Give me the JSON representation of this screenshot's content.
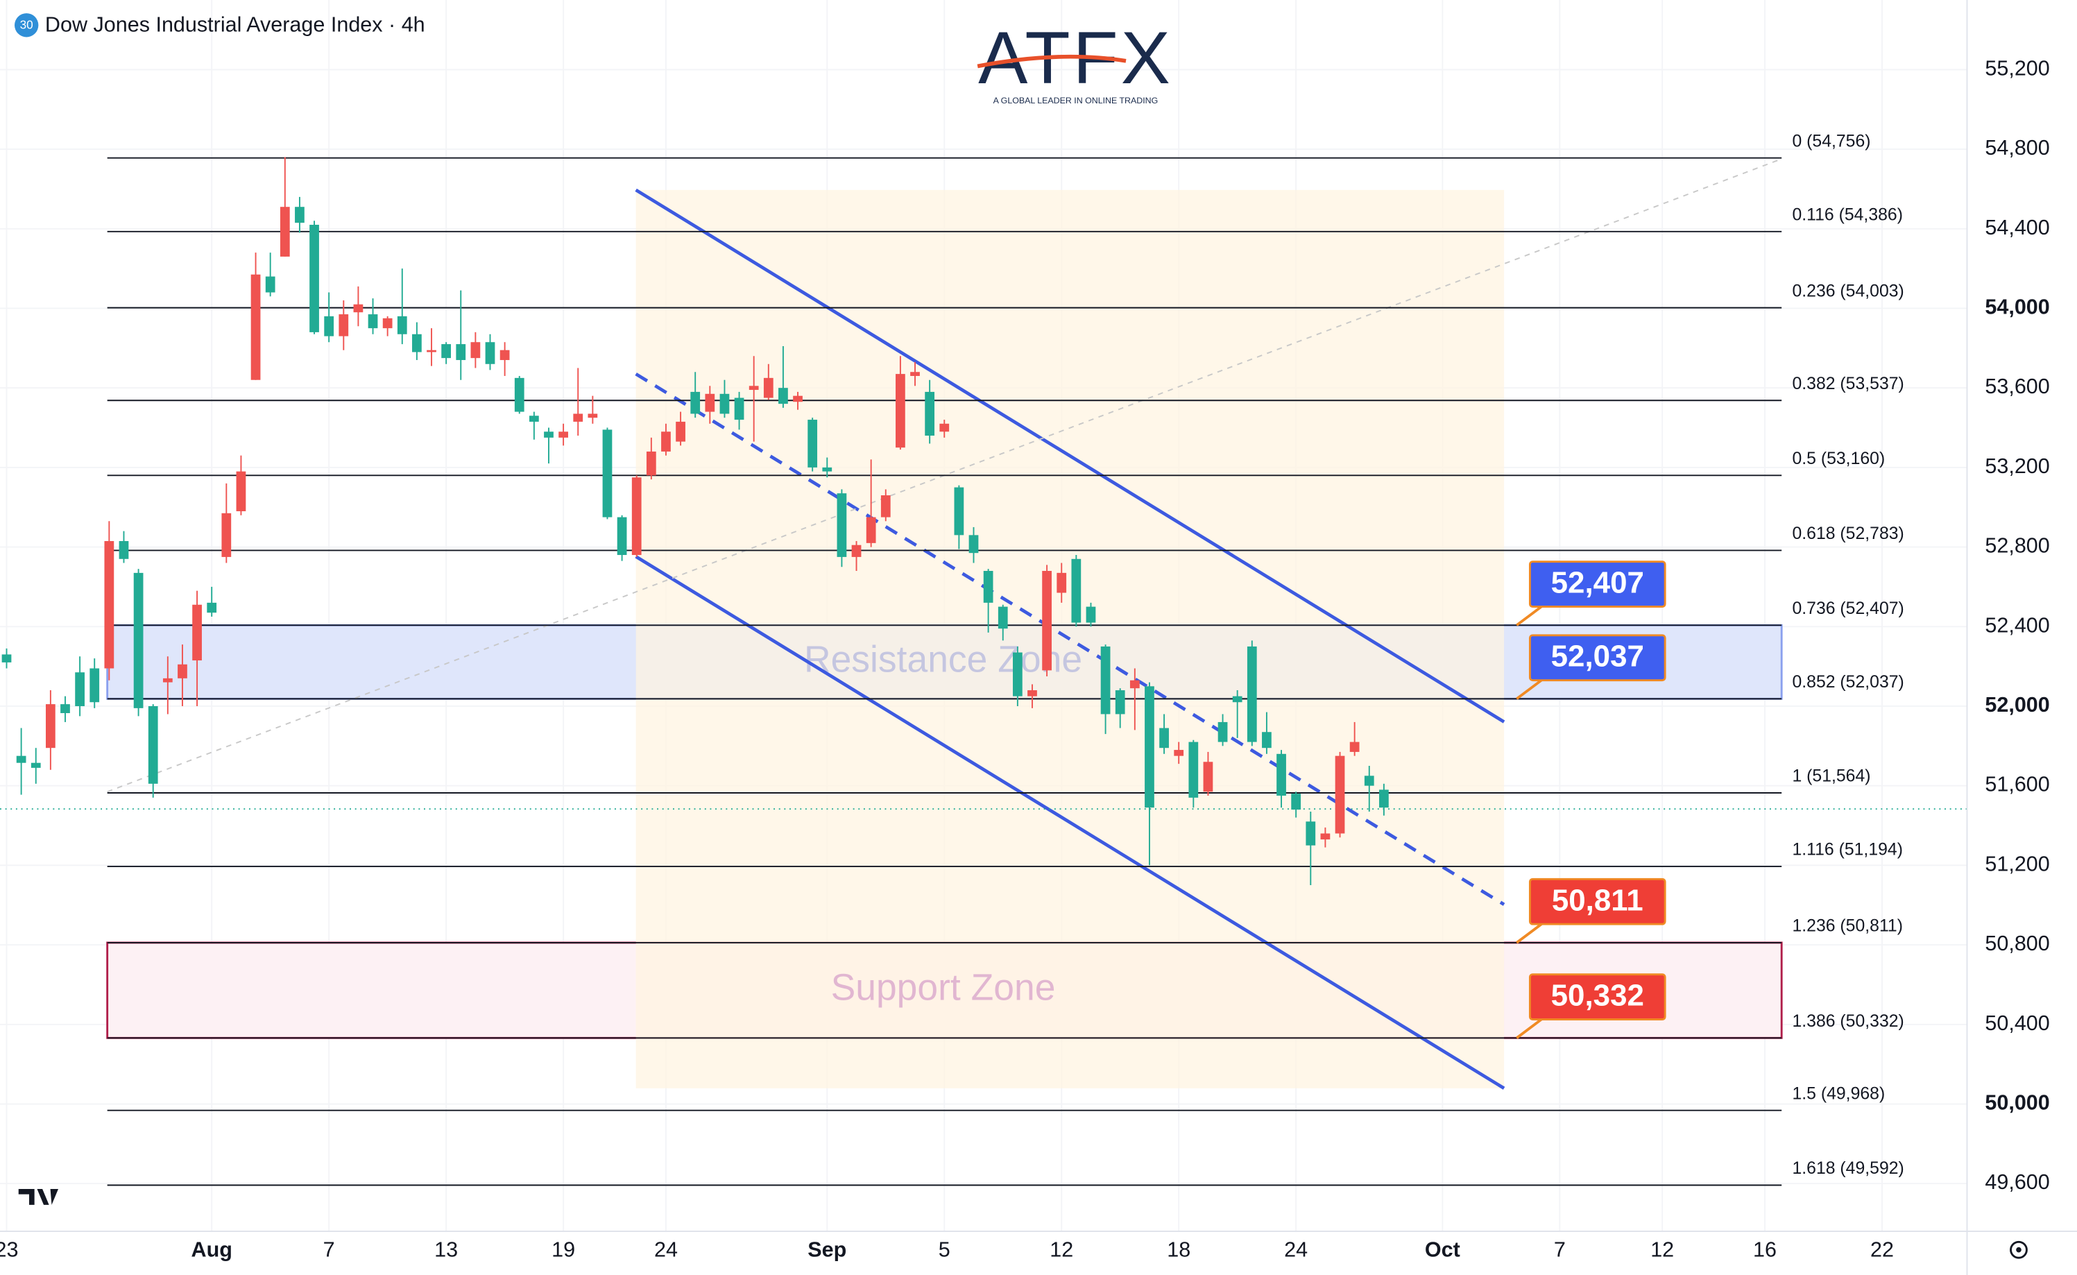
{
  "chart_data": {
    "type": "candlestick",
    "title": "Dow Jones Industrial Average Index · 4h",
    "symbol_badge": "30",
    "logo": "ATFX",
    "logo_tagline": "A GLOBAL LEADER IN ONLINE TRADING",
    "categories": [
      null,
      null,
      null,
      null,
      null,
      null,
      null,
      null,
      null,
      null,
      null,
      null,
      null,
      null,
      null,
      null,
      null,
      null,
      null,
      null,
      null,
      null,
      null,
      null,
      null,
      null,
      null,
      null,
      null,
      null,
      null,
      null,
      null,
      null,
      null,
      null,
      null,
      null,
      null,
      null,
      null,
      null,
      null,
      null,
      null,
      null,
      null,
      null,
      null,
      null,
      null,
      null,
      null,
      null,
      null,
      null,
      null,
      null,
      null,
      null,
      null,
      null,
      null,
      null,
      null,
      null,
      null,
      null,
      null,
      null,
      null,
      null,
      null,
      null,
      null,
      null,
      null,
      null,
      null,
      null,
      null,
      null,
      null,
      null,
      null,
      null,
      null,
      null,
      null,
      null,
      null,
      null,
      null,
      null,
      null
    ],
    "series": [
      {
        "up_color": "#ef5350",
        "down_color": "#22ab94",
        "open": [
          52260,
          51750,
          51715,
          51790,
          52010,
          52170,
          52190,
          52190,
          52830,
          52670,
          52000,
          52120,
          52140,
          52230,
          52520,
          52750,
          52980,
          53640,
          54160,
          54260,
          54510,
          54420,
          53960,
          53860,
          53980,
          53970,
          53900,
          53960,
          53870,
          53780,
          53820,
          53820,
          53750,
          53830,
          53740,
          53650,
          53460,
          53380,
          53350,
          53430,
          53450,
          53390,
          52950,
          52760,
          53160,
          53280,
          53330,
          53580,
          53480,
          53570,
          53550,
          53590,
          53550,
          53600,
          53530,
          53440,
          53200,
          53070,
          52750,
          52820,
          52950,
          53300,
          53660,
          53580,
          53380,
          53100,
          52860,
          52680,
          52500,
          52270,
          52050,
          52180,
          52570,
          52740,
          52500,
          52300,
          52080,
          52090,
          52100,
          51890,
          51750,
          51820,
          51570,
          51920,
          52050,
          52300,
          51870,
          51760,
          51560,
          51420,
          51330,
          51360,
          51770,
          51650,
          51580
        ],
        "high": [
          52290,
          51890,
          51790,
          52080,
          52050,
          52250,
          52240,
          52930,
          52880,
          52690,
          52010,
          52250,
          52310,
          52580,
          52600,
          53120,
          53260,
          54280,
          54280,
          54760,
          54560,
          54440,
          54080,
          54040,
          54110,
          54050,
          53960,
          54200,
          53930,
          53900,
          53830,
          54090,
          53880,
          53870,
          53830,
          53660,
          53480,
          53400,
          53420,
          53700,
          53560,
          53400,
          52960,
          53160,
          53350,
          53420,
          53480,
          53680,
          53610,
          53640,
          53580,
          53760,
          53720,
          53810,
          53580,
          53450,
          53250,
          53090,
          52830,
          53240,
          53090,
          53760,
          53730,
          53640,
          53440,
          53110,
          52900,
          52690,
          52510,
          52300,
          52110,
          52710,
          52720,
          52760,
          52520,
          52310,
          52090,
          52190,
          52120,
          51960,
          51820,
          51830,
          51770,
          51960,
          52080,
          52330,
          51970,
          51780,
          51570,
          51470,
          51390,
          51770,
          51920,
          51700,
          51610
        ],
        "low": [
          52190,
          51555,
          51610,
          51680,
          51920,
          51950,
          51990,
          52130,
          52720,
          51950,
          51540,
          51960,
          52000,
          52000,
          52450,
          52720,
          52960,
          53640,
          54060,
          54260,
          54380,
          53870,
          53830,
          53790,
          53910,
          53870,
          53860,
          53820,
          53740,
          53710,
          53720,
          53640,
          53700,
          53690,
          53660,
          53470,
          53340,
          53220,
          53310,
          53360,
          53420,
          52940,
          52730,
          52750,
          53140,
          53260,
          53310,
          53450,
          53420,
          53450,
          53390,
          53330,
          53540,
          53500,
          53490,
          53180,
          53150,
          52700,
          52680,
          52800,
          52930,
          53290,
          53610,
          53320,
          53350,
          52790,
          52720,
          52370,
          52330,
          52000,
          51990,
          52150,
          52520,
          52400,
          52400,
          51860,
          51890,
          51880,
          51200,
          51760,
          51710,
          51490,
          51550,
          51800,
          51840,
          51800,
          51760,
          51490,
          51440,
          51100,
          51290,
          51340,
          51750,
          51470,
          51450
        ],
        "close": [
          52220,
          51715,
          51690,
          52010,
          51965,
          52000,
          52020,
          52830,
          52740,
          51990,
          51610,
          52140,
          52210,
          52510,
          52470,
          52970,
          53180,
          54170,
          54080,
          54510,
          54430,
          53880,
          53860,
          53970,
          54020,
          53900,
          53950,
          53870,
          53780,
          53790,
          53750,
          53740,
          53830,
          53720,
          53790,
          53480,
          53430,
          53350,
          53380,
          53470,
          53470,
          52950,
          52760,
          53150,
          53280,
          53380,
          53430,
          53470,
          53570,
          53470,
          53440,
          53610,
          53650,
          53520,
          53560,
          53200,
          53180,
          52750,
          52810,
          52950,
          53060,
          53670,
          53680,
          53360,
          53420,
          52860,
          52770,
          52520,
          52390,
          52050,
          52080,
          52680,
          52670,
          52420,
          52420,
          51960,
          51960,
          52130,
          51490,
          51790,
          51780,
          51540,
          51720,
          51820,
          52020,
          51820,
          51790,
          51550,
          51480,
          51300,
          51360,
          51750,
          51820,
          51600,
          51490
        ]
      }
    ],
    "xlim": [
      -0.45,
      133.8
    ],
    "xticks": [
      {
        "value": 0,
        "label": "23"
      },
      {
        "value": 14,
        "label": "Aug"
      },
      {
        "value": 22,
        "label": "7"
      },
      {
        "value": 30,
        "label": "13"
      },
      {
        "value": 38,
        "label": "19"
      },
      {
        "value": 45,
        "label": "24"
      },
      {
        "value": 56,
        "label": "Sep"
      },
      {
        "value": 64,
        "label": "5"
      },
      {
        "value": 72,
        "label": "12"
      },
      {
        "value": 80,
        "label": "18"
      },
      {
        "value": 88,
        "label": "24"
      },
      {
        "value": 98,
        "label": "Oct"
      },
      {
        "value": 106,
        "label": "7"
      },
      {
        "value": 113,
        "label": "12"
      },
      {
        "value": 120,
        "label": "16"
      },
      {
        "value": 128,
        "label": "22"
      }
    ],
    "ylim": [
      49360,
      55550
    ],
    "yticks": [
      {
        "value": 55200,
        "label": "55,200"
      },
      {
        "value": 54800,
        "label": "54,800"
      },
      {
        "value": 54400,
        "label": "54,400"
      },
      {
        "value": 54000,
        "label": "54,000"
      },
      {
        "value": 53600,
        "label": "53,600"
      },
      {
        "value": 53200,
        "label": "53,200"
      },
      {
        "value": 52800,
        "label": "52,800"
      },
      {
        "value": 52400,
        "label": "52,400"
      },
      {
        "value": 52000,
        "label": "52,000"
      },
      {
        "value": 51600,
        "label": "51,600"
      },
      {
        "value": 51200,
        "label": "51,200"
      },
      {
        "value": 50800,
        "label": "50,800"
      },
      {
        "value": 50400,
        "label": "50,400"
      },
      {
        "value": 50000,
        "label": "50,000"
      },
      {
        "value": 49600,
        "label": "49,600"
      }
    ],
    "fib_levels": [
      {
        "value": 54756,
        "label": "0 (54,756)"
      },
      {
        "value": 54386,
        "label": "0.116 (54,386)"
      },
      {
        "value": 54003,
        "label": "0.236 (54,003)"
      },
      {
        "value": 53537,
        "label": "0.382 (53,537)"
      },
      {
        "value": 53160,
        "label": "0.5 (53,160)"
      },
      {
        "value": 52783,
        "label": "0.618 (52,783)"
      },
      {
        "value": 52407,
        "label": "0.736 (52,407)"
      },
      {
        "value": 52037,
        "label": "0.852 (52,037)"
      },
      {
        "value": 51564,
        "label": "1 (51,564)"
      },
      {
        "value": 51194,
        "label": "1.116 (51,194)"
      },
      {
        "value": 50811,
        "label": "1.236 (50,811)"
      },
      {
        "value": 50332,
        "label": "1.386 (50,332)"
      },
      {
        "value": 49968,
        "label": "1.5 (49,968)"
      },
      {
        "value": 49592,
        "label": "1.618 (49,592)"
      }
    ],
    "zones": [
      {
        "label": "Resistance Zone",
        "from": 52037,
        "to": 52407,
        "fill": "#dfe6fb",
        "stroke": "#8aa0ee",
        "text_color": "#3d5ae0"
      },
      {
        "label": "Support Zone",
        "from": 50332,
        "to": 50811,
        "fill": "#fdf1f4",
        "stroke": "#b01e4a",
        "text_color": "#9c27b0"
      }
    ],
    "price_tags": [
      {
        "value": 52407,
        "label": "52,407",
        "color": "#3f5ff0"
      },
      {
        "value": 52037,
        "label": "52,037",
        "color": "#3f5ff0"
      },
      {
        "value": 50811,
        "label": "50,811",
        "color": "#ef3e36"
      },
      {
        "value": 50332,
        "label": "50,332",
        "color": "#ef3e36"
      }
    ],
    "channel": {
      "color": "#3d5ae0",
      "upper": [
        [
          42.95,
          54595
        ],
        [
          102.2,
          51921
        ]
      ],
      "lower": [
        [
          42.95,
          52752
        ],
        [
          102.2,
          50079
        ]
      ],
      "median": [
        [
          42.95,
          53670
        ],
        [
          102.2,
          51003
        ]
      ]
    }
  }
}
